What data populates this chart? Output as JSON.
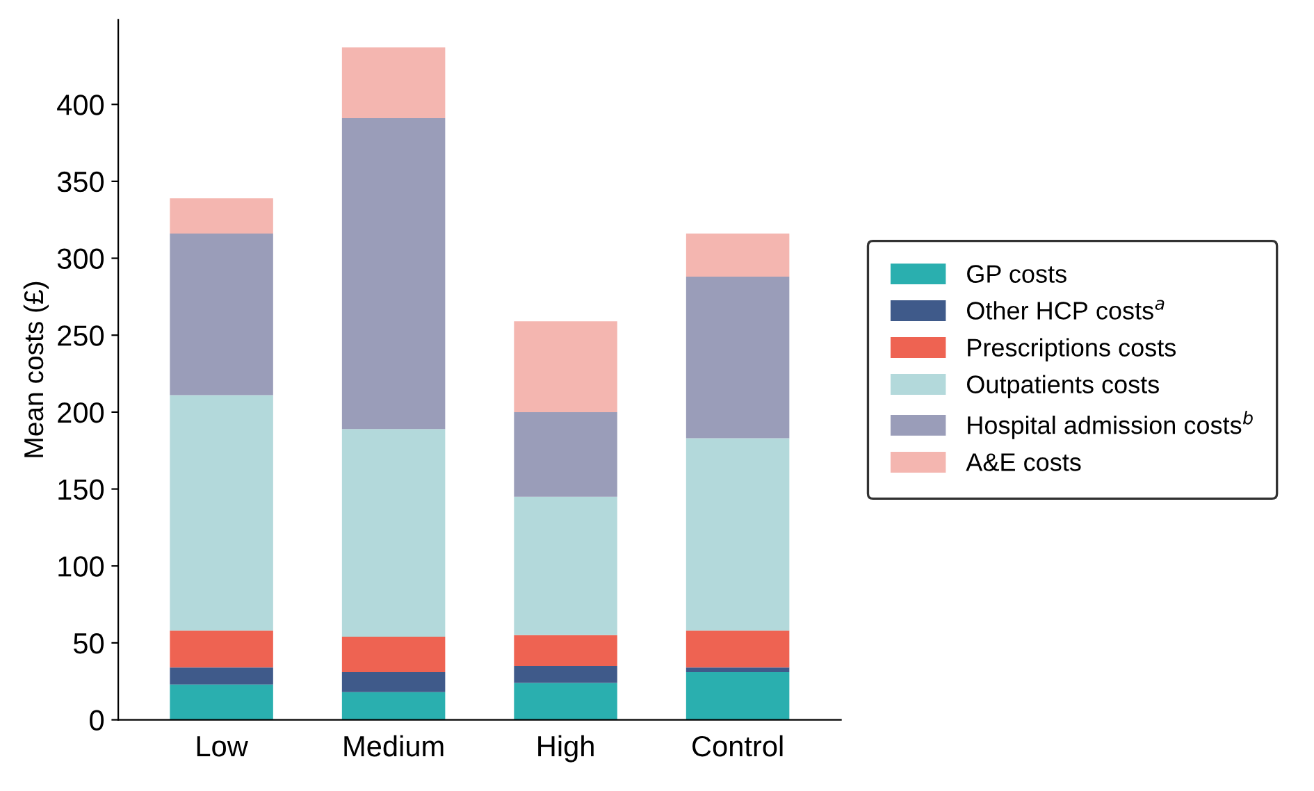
{
  "chart_data": {
    "type": "bar",
    "stacked": true,
    "ylabel": "Mean costs (£)",
    "categories": [
      "Low",
      "Medium",
      "High",
      "Control"
    ],
    "series": [
      {
        "name": "GP costs",
        "color": "#2aafaf",
        "values": [
          23,
          18,
          24,
          31
        ]
      },
      {
        "name": "Other HCP costs$^{a}$",
        "color": "#3f5a8a",
        "values": [
          11,
          13,
          11,
          3
        ]
      },
      {
        "name": "Prescriptions costs",
        "color": "#ee6352",
        "values": [
          24,
          23,
          20,
          24
        ]
      },
      {
        "name": "Outpatients costs",
        "color": "#b3d9db",
        "values": [
          153,
          135,
          90,
          125
        ]
      },
      {
        "name": "Hospital admission costs$^{b}$",
        "color": "#9a9db9",
        "values": [
          105,
          202,
          55,
          105
        ]
      },
      {
        "name": "A&E costs",
        "color": "#f4b6b0",
        "values": [
          23,
          46,
          59,
          28
        ]
      }
    ],
    "ylim": [
      0,
      455
    ],
    "yticks": [
      0,
      50,
      100,
      150,
      200,
      250,
      300,
      350,
      400
    ],
    "grid": false,
    "legend": "right"
  }
}
